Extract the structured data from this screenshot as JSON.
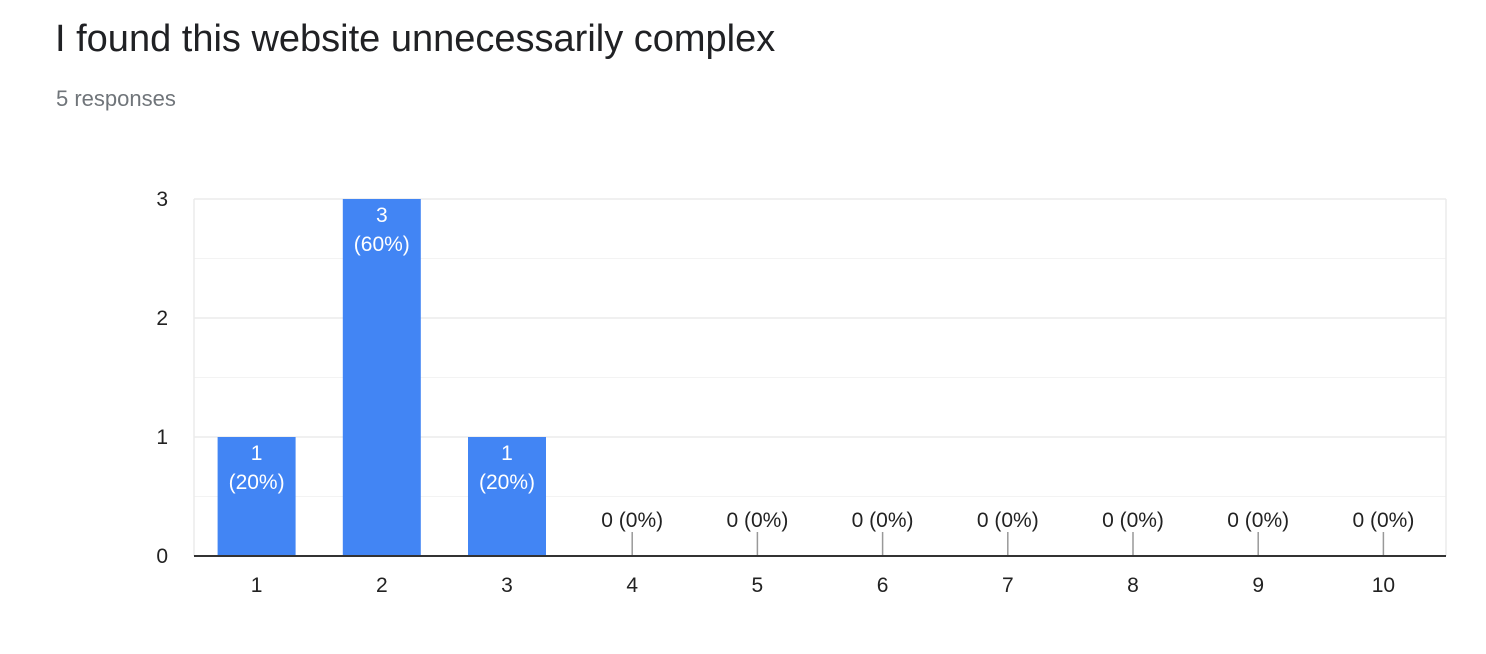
{
  "header": {
    "title": "I found this website unnecessarily complex",
    "responses": "5 responses"
  },
  "colors": {
    "bar": "#4285f4",
    "grid": "#ebebeb",
    "minor_grid": "#f3f3f3",
    "axis": "#333333"
  },
  "chart_data": {
    "type": "bar",
    "title": "",
    "xlabel": "",
    "ylabel": "",
    "categories": [
      "1",
      "2",
      "3",
      "4",
      "5",
      "6",
      "7",
      "8",
      "9",
      "10"
    ],
    "values": [
      1,
      3,
      1,
      0,
      0,
      0,
      0,
      0,
      0,
      0
    ],
    "labels": [
      [
        "1",
        "(20%)"
      ],
      [
        "3",
        "(60%)"
      ],
      [
        "1",
        "(20%)"
      ],
      [
        "0 (0%)"
      ],
      [
        "0 (0%)"
      ],
      [
        "0 (0%)"
      ],
      [
        "0 (0%)"
      ],
      [
        "0 (0%)"
      ],
      [
        "0 (0%)"
      ],
      [
        "0 (0%)"
      ]
    ],
    "ylim": [
      0,
      3
    ],
    "yticks": [
      0,
      1,
      2,
      3
    ],
    "grid": true,
    "legend": "none"
  }
}
